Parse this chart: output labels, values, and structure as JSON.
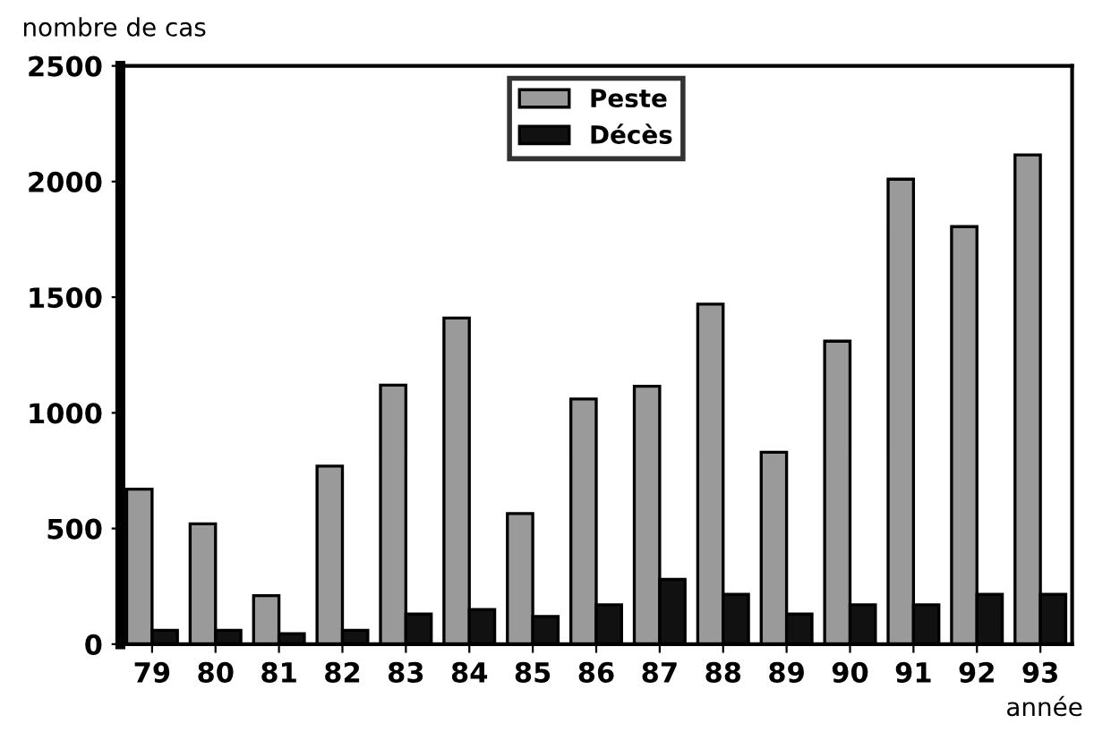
{
  "chart_data": {
    "type": "bar",
    "ylabel": "nombre de cas",
    "xlabel": "année",
    "categories": [
      "79",
      "80",
      "81",
      "82",
      "83",
      "84",
      "85",
      "86",
      "87",
      "88",
      "89",
      "90",
      "91",
      "92",
      "93"
    ],
    "series": [
      {
        "name": "Peste",
        "color": "#9a9a9a",
        "values": [
          670,
          520,
          210,
          770,
          1120,
          1410,
          565,
          1060,
          1115,
          1470,
          830,
          1310,
          2010,
          1805,
          2115
        ]
      },
      {
        "name": "Décès",
        "color": "#111111",
        "values": [
          60,
          60,
          45,
          60,
          130,
          150,
          120,
          170,
          280,
          215,
          130,
          170,
          170,
          215,
          215
        ]
      }
    ],
    "ylim": [
      0,
      2500
    ],
    "yticks": [
      0,
      500,
      1000,
      1500,
      2000,
      2500
    ],
    "grid": false,
    "legend": "top"
  }
}
